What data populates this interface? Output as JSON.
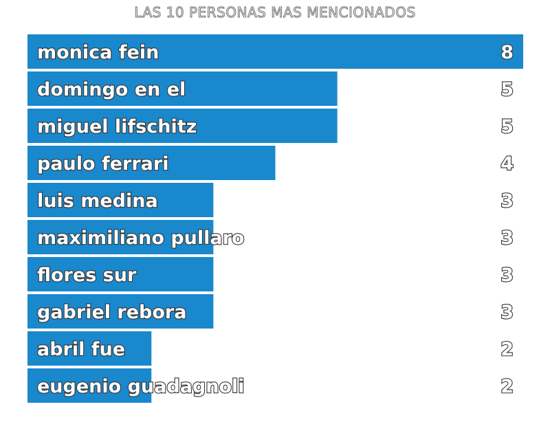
{
  "chart_data": {
    "type": "bar",
    "orientation": "horizontal",
    "title": "LAS 10 PERSONAS MAS MENCIONADOS",
    "categories": [
      "monica fein",
      "domingo en el",
      "miguel lifschitz",
      "paulo ferrari",
      "luis medina",
      "maximiliano pullaro",
      "flores sur",
      "gabriel rebora",
      "abril fue",
      "eugenio guadagnoli"
    ],
    "values": [
      8,
      5,
      5,
      4,
      3,
      3,
      3,
      3,
      2,
      2
    ],
    "xlim": [
      0,
      8
    ],
    "grid": false,
    "legend": "none",
    "colors": {
      "bar": "#1a88cc",
      "background": "#ffffff"
    }
  }
}
